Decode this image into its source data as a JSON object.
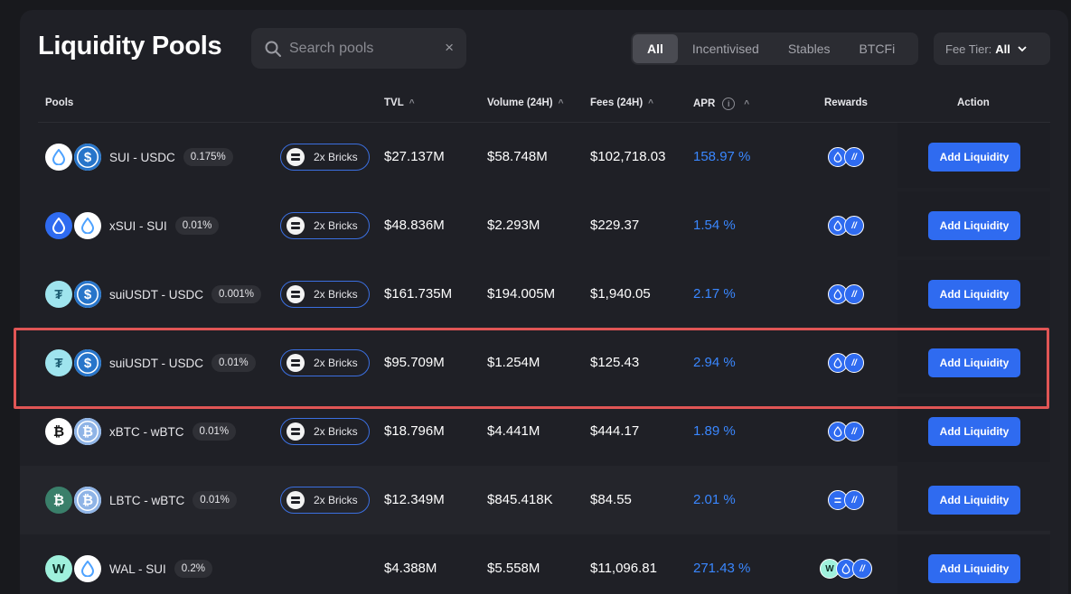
{
  "page": {
    "title": "Liquidity Pools"
  },
  "search": {
    "placeholder": "Search pools",
    "clear_icon": "×"
  },
  "filters": [
    {
      "label": "All",
      "active": true
    },
    {
      "label": "Incentivised",
      "active": false
    },
    {
      "label": "Stables",
      "active": false
    },
    {
      "label": "BTCFi",
      "active": false
    }
  ],
  "fee_tier": {
    "label": "Fee Tier:",
    "value": "All"
  },
  "columns": {
    "pools": "Pools",
    "tvl": "TVL",
    "volume": "Volume (24H)",
    "fees": "Fees (24H)",
    "apr": "APR",
    "rewards": "Rewards",
    "action": "Action",
    "sort_icon": "^",
    "info_icon": "i"
  },
  "colors": {
    "accent": "#2f6bf0",
    "apr": "#3a87ff",
    "highlight": "#e05555",
    "background": "#18191d",
    "panel": "#1f2026"
  },
  "pools": [
    {
      "token_a": {
        "icon": "sui-drop-icon",
        "bg": "#ffffff",
        "fg": "#4da2ff",
        "glyph": ""
      },
      "token_b": {
        "icon": "usdc-icon",
        "bg": "#2775ca",
        "fg": "#ffffff",
        "glyph": "$"
      },
      "name": "SUI - USDC",
      "fee": "0.175%",
      "bricks": "2x Bricks",
      "tvl": "$27.137M",
      "volume": "$58.748M",
      "fees": "$102,718.03",
      "apr": "158.97 %",
      "rewards": [
        "sui",
        "deep"
      ],
      "action": "Add Liquidity"
    },
    {
      "token_a": {
        "icon": "xsui-drop-icon",
        "bg": "#2f6bf0",
        "fg": "#ffffff",
        "glyph": ""
      },
      "token_b": {
        "icon": "sui-drop-icon",
        "bg": "#ffffff",
        "fg": "#4da2ff",
        "glyph": ""
      },
      "name": "xSUI - SUI",
      "fee": "0.01%",
      "bricks": "2x Bricks",
      "tvl": "$48.836M",
      "volume": "$2.293M",
      "fees": "$229.37",
      "apr": "1.54 %",
      "rewards": [
        "sui",
        "deep"
      ],
      "action": "Add Liquidity"
    },
    {
      "token_a": {
        "icon": "tether-icon",
        "bg": "#9fe4ee",
        "fg": "#1f5f74",
        "glyph": "₮"
      },
      "token_b": {
        "icon": "usdc-icon",
        "bg": "#2775ca",
        "fg": "#ffffff",
        "glyph": "$"
      },
      "name": "suiUSDT - USDC",
      "fee": "0.001%",
      "bricks": "2x Bricks",
      "tvl": "$161.735M",
      "volume": "$194.005M",
      "fees": "$1,940.05",
      "apr": "2.17 %",
      "rewards": [
        "sui",
        "deep"
      ],
      "action": "Add Liquidity"
    },
    {
      "token_a": {
        "icon": "tether-icon",
        "bg": "#9fe4ee",
        "fg": "#1f5f74",
        "glyph": "₮"
      },
      "token_b": {
        "icon": "usdc-icon",
        "bg": "#2775ca",
        "fg": "#ffffff",
        "glyph": "$"
      },
      "name": "suiUSDT - USDC",
      "fee": "0.01%",
      "bricks": "2x Bricks",
      "tvl": "$95.709M",
      "volume": "$1.254M",
      "fees": "$125.43",
      "apr": "2.94 %",
      "rewards": [
        "sui",
        "deep"
      ],
      "action": "Add Liquidity",
      "highlighted": true
    },
    {
      "token_a": {
        "icon": "xbtc-icon",
        "bg": "#ffffff",
        "fg": "#111111",
        "glyph": "₿"
      },
      "token_b": {
        "icon": "wbtc-icon",
        "bg": "#8fb4e6",
        "fg": "#ffffff",
        "glyph": "₿"
      },
      "name": "xBTC - wBTC",
      "fee": "0.01%",
      "bricks": "2x Bricks",
      "tvl": "$18.796M",
      "volume": "$4.441M",
      "fees": "$444.17",
      "apr": "1.89 %",
      "rewards": [
        "sui",
        "deep"
      ],
      "action": "Add Liquidity"
    },
    {
      "token_a": {
        "icon": "lbtc-icon",
        "bg": "#3a7f6a",
        "fg": "#ffffff",
        "glyph": "₿"
      },
      "token_b": {
        "icon": "wbtc-icon",
        "bg": "#8fb4e6",
        "fg": "#ffffff",
        "glyph": "₿"
      },
      "name": "LBTC - wBTC",
      "fee": "0.01%",
      "bricks": "2x Bricks",
      "tvl": "$12.349M",
      "volume": "$845.418K",
      "fees": "$84.55",
      "apr": "2.01 %",
      "rewards": [
        "lombard",
        "deep"
      ],
      "action": "Add Liquidity"
    },
    {
      "token_a": {
        "icon": "wal-icon",
        "bg": "#9ff0dc",
        "fg": "#0e2e27",
        "glyph": "W"
      },
      "token_b": {
        "icon": "sui-drop-icon",
        "bg": "#ffffff",
        "fg": "#4da2ff",
        "glyph": ""
      },
      "name": "WAL - SUI",
      "fee": "0.2%",
      "bricks": "",
      "tvl": "$4.388M",
      "volume": "$5.558M",
      "fees": "$11,096.81",
      "apr": "271.43 %",
      "rewards": [
        "wal",
        "sui",
        "deep"
      ],
      "action": "Add Liquidity"
    }
  ]
}
